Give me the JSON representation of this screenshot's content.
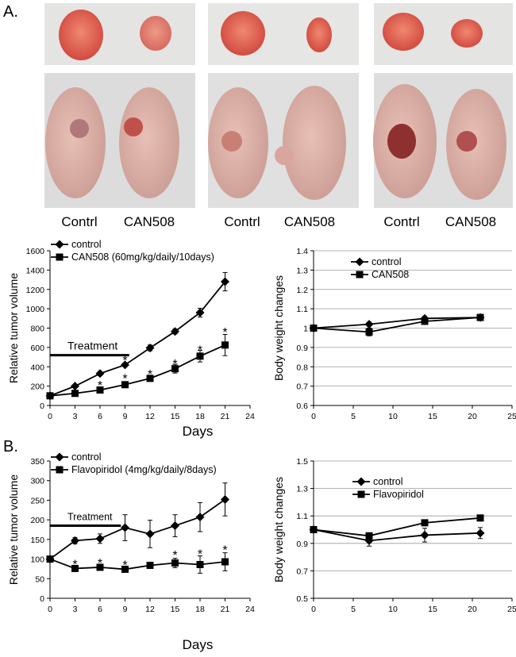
{
  "panels": [
    {
      "letter": "A.",
      "captions": [
        [
          "Contrl",
          "CAN508"
        ],
        [
          "Contrl",
          "CAN508"
        ],
        [
          "Contrl",
          "CAN508"
        ]
      ]
    },
    {
      "letter": "B."
    }
  ],
  "chart_data": [
    {
      "type": "line",
      "id": "a-left",
      "ylabel": "Relative tumor volume",
      "xlabel": "Days",
      "xlim": [
        0,
        24
      ],
      "xticks": [
        0,
        3,
        6,
        9,
        12,
        15,
        18,
        21,
        24
      ],
      "ylim": [
        0,
        1600
      ],
      "yticks": [
        0,
        200,
        400,
        600,
        800,
        1000,
        1200,
        1400,
        1600
      ],
      "grid": false,
      "legend": {
        "placement": "top-left",
        "entries": [
          "control",
          "CAN508 (60mg/kg/daily/10days)"
        ]
      },
      "treatment": {
        "label": "Treatment",
        "x": [
          0,
          9.5
        ],
        "y": 520
      },
      "series": [
        {
          "name": "control",
          "marker": "diamond",
          "x": [
            0,
            3,
            6,
            9,
            12,
            15,
            18,
            21
          ],
          "y": [
            100,
            200,
            330,
            420,
            595,
            765,
            960,
            1280
          ],
          "err": [
            0,
            15,
            20,
            20,
            30,
            25,
            45,
            95
          ]
        },
        {
          "name": "CAN508 (60mg/kg/daily/10days)",
          "marker": "square",
          "x": [
            0,
            3,
            6,
            9,
            12,
            15,
            18,
            21
          ],
          "y": [
            100,
            125,
            160,
            215,
            280,
            380,
            510,
            625
          ],
          "err": [
            0,
            10,
            15,
            20,
            25,
            45,
            60,
            110
          ]
        }
      ],
      "stars": [
        {
          "x": 6,
          "y": 230,
          "text": "*"
        },
        {
          "x": 9,
          "y": 300,
          "text": "*"
        },
        {
          "x": 9,
          "y": 490,
          "text": "*"
        },
        {
          "x": 12,
          "y": 345,
          "text": "*"
        },
        {
          "x": 15,
          "y": 450,
          "text": "*"
        },
        {
          "x": 18,
          "y": 595,
          "text": "*"
        },
        {
          "x": 21,
          "y": 780,
          "text": "*"
        }
      ]
    },
    {
      "type": "line",
      "id": "a-right",
      "ylabel": "Body weight changes",
      "xlim": [
        0,
        25
      ],
      "xticks": [
        0,
        5,
        10,
        15,
        20,
        25
      ],
      "ylim": [
        0.6,
        1.4
      ],
      "yticks": [
        "0.6",
        "0.7",
        "0.8",
        "0.9",
        "1",
        "1.1",
        "1.2",
        "1.3",
        "1.4"
      ],
      "grid": true,
      "legend": {
        "placement": "top-center",
        "entries": [
          "control",
          "CAN508"
        ]
      },
      "series": [
        {
          "name": "control",
          "marker": "diamond",
          "x": [
            0,
            7,
            14,
            21
          ],
          "y": [
            1.0,
            1.02,
            1.05,
            1.055
          ],
          "err": [
            0,
            0.01,
            0.01,
            0.01
          ]
        },
        {
          "name": "CAN508",
          "marker": "square",
          "x": [
            0,
            7,
            14,
            21
          ],
          "y": [
            1.0,
            0.98,
            1.035,
            1.055
          ],
          "err": [
            0,
            0.02,
            0.01,
            0.01
          ]
        }
      ]
    },
    {
      "type": "line",
      "id": "b-left",
      "ylabel": "Relative tumor volume",
      "xlabel": "Days",
      "xlim": [
        0,
        24
      ],
      "xticks": [
        0,
        3,
        6,
        9,
        12,
        15,
        18,
        21,
        24
      ],
      "ylim": [
        0,
        350
      ],
      "yticks": [
        0,
        50,
        100,
        150,
        200,
        250,
        300,
        350
      ],
      "grid": false,
      "legend": {
        "placement": "top-left",
        "entries": [
          "control",
          "Flavopiridol (4mg/kg/daily/8days)"
        ]
      },
      "treatment": {
        "label": "Treatment",
        "x": [
          0,
          8.5
        ],
        "y": 185
      },
      "series": [
        {
          "name": "control",
          "marker": "diamond",
          "x": [
            0,
            3,
            6,
            9,
            12,
            15,
            18,
            21
          ],
          "y": [
            100,
            147,
            152,
            180,
            164,
            185,
            207,
            252
          ],
          "err": [
            0,
            8,
            12,
            33,
            35,
            28,
            37,
            42
          ]
        },
        {
          "name": "Flavopiridol (4mg/kg/daily/8days)",
          "marker": "square",
          "x": [
            0,
            3,
            6,
            9,
            12,
            15,
            18,
            21
          ],
          "y": [
            100,
            76,
            79,
            74,
            84,
            90,
            86,
            93
          ],
          "err": [
            0,
            4,
            4,
            5,
            8,
            12,
            22,
            23
          ]
        }
      ],
      "stars": [
        {
          "x": 3,
          "y": 92,
          "text": "*"
        },
        {
          "x": 6,
          "y": 95,
          "text": "*"
        },
        {
          "x": 9,
          "y": 90,
          "text": "*"
        },
        {
          "x": 15,
          "y": 115,
          "text": "*"
        },
        {
          "x": 18,
          "y": 118,
          "text": "*"
        },
        {
          "x": 21,
          "y": 128,
          "text": "*"
        }
      ]
    },
    {
      "type": "line",
      "id": "b-right",
      "ylabel": "Body weight changes",
      "xlim": [
        0,
        25
      ],
      "xticks": [
        0,
        5,
        10,
        15,
        20,
        25
      ],
      "ylim": [
        0.5,
        1.5
      ],
      "yticks": [
        "0.5",
        "0.7",
        "0.9",
        "1.1",
        "1.3",
        "1.5"
      ],
      "grid": true,
      "legend": {
        "placement": "top-center",
        "entries": [
          "control",
          "Flavopiridol"
        ]
      },
      "series": [
        {
          "name": "control",
          "marker": "diamond",
          "x": [
            0,
            7,
            14,
            21
          ],
          "y": [
            1.0,
            0.92,
            0.96,
            0.975
          ],
          "err": [
            0,
            0.04,
            0.05,
            0.04
          ]
        },
        {
          "name": "Flavopiridol",
          "marker": "square",
          "x": [
            0,
            7,
            14,
            21
          ],
          "y": [
            1.0,
            0.955,
            1.05,
            1.085
          ],
          "err": [
            0,
            0.02,
            0.02,
            0.02
          ]
        }
      ]
    }
  ]
}
